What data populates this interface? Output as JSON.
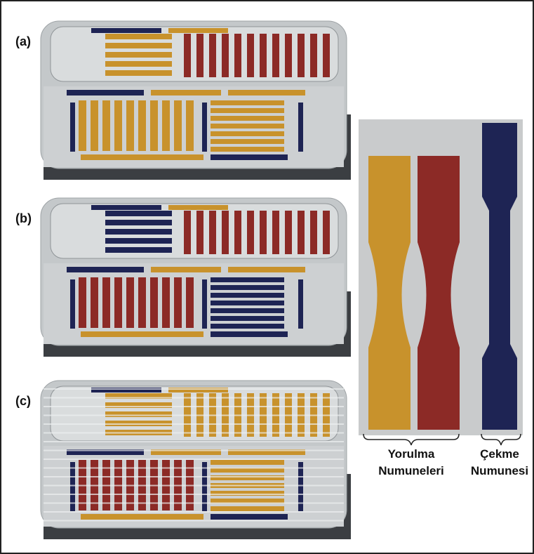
{
  "panels": [
    {
      "label": "(a)"
    },
    {
      "label": "(b)"
    },
    {
      "label": "(c)"
    }
  ],
  "legend": {
    "groups": [
      {
        "lines": [
          "Yorulma",
          "Numuneleri"
        ]
      },
      {
        "lines": [
          "Çekme",
          "Numunesi"
        ]
      }
    ]
  }
}
